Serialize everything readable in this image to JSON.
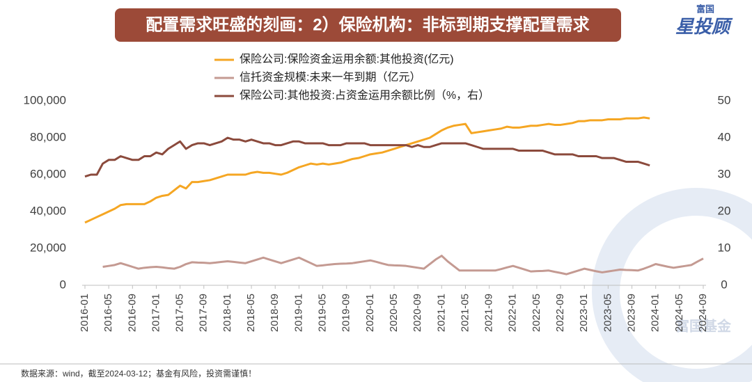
{
  "chart_data": {
    "type": "line",
    "title": "配置需求旺盛的刻画：2）保险机构：非标到期支撑配置需求",
    "logo": {
      "top": "富国",
      "main": "星投顾"
    },
    "watermark": "富国基金",
    "footer": "数据来源：wind，截至2024-03-12；基金有风险，投资需谨慎！",
    "categories": [
      "2016-01",
      null,
      null,
      null,
      "2016-05",
      null,
      null,
      null,
      "2016-09",
      null,
      null,
      null,
      "2017-01",
      null,
      null,
      null,
      "2017-05",
      null,
      null,
      null,
      "2017-09",
      null,
      null,
      null,
      "2018-01",
      null,
      null,
      null,
      "2018-05",
      null,
      null,
      null,
      "2018-09",
      null,
      null,
      null,
      "2019-01",
      null,
      null,
      null,
      "2019-05",
      null,
      null,
      null,
      "2019-09",
      null,
      null,
      null,
      "2020-01",
      null,
      null,
      null,
      "2020-05",
      null,
      null,
      null,
      "2020-09",
      null,
      null,
      null,
      "2021-01",
      null,
      null,
      null,
      "2021-05",
      null,
      null,
      null,
      "2021-09",
      null,
      null,
      null,
      "2022-01",
      null,
      null,
      null,
      "2022-05",
      null,
      null,
      null,
      "2022-09",
      null,
      null,
      null,
      "2023-01",
      null,
      null,
      null,
      "2023-05",
      null,
      null,
      null,
      "2023-09",
      null,
      null,
      null,
      "2024-01",
      null,
      null,
      null,
      "2024-05",
      null,
      null,
      null,
      "2024-09"
    ],
    "series": [
      {
        "name": "保险公司:保险资金运用余额:其他投资(亿元)",
        "color": "#f5a623",
        "values": [
          34000,
          35500,
          37000,
          38500,
          40000,
          41500,
          43500,
          44000,
          44000,
          44000,
          44000,
          45500,
          47500,
          48500,
          49000,
          51500,
          54000,
          52500,
          56000,
          56000,
          56500,
          57000,
          58000,
          59000,
          60000,
          60000,
          60000,
          60000,
          61000,
          61500,
          61000,
          61000,
          60500,
          60000,
          61000,
          62500,
          64000,
          65000,
          66000,
          65500,
          66000,
          65500,
          66000,
          66500,
          67500,
          68500,
          69000,
          70000,
          71000,
          71500,
          72000,
          73000,
          74000,
          75000,
          76000,
          77000,
          78000,
          79000,
          80000,
          82000,
          84000,
          85500,
          86500,
          87000,
          87500,
          82500,
          83000,
          83500,
          84000,
          84500,
          85000,
          86000,
          85500,
          85500,
          86000,
          86500,
          86500,
          87000,
          87500,
          87000,
          87000,
          87500,
          88000,
          89000,
          89000,
          89500,
          89500,
          89500,
          90000,
          90000,
          90000,
          90500,
          90500,
          90500,
          91000,
          90500,
          null,
          null,
          null,
          null,
          null,
          null,
          null,
          null,
          null
        ]
      },
      {
        "name": "信托资金规模:未来一年到期（亿元）",
        "color": "#c49a92",
        "values": [
          null,
          null,
          null,
          10000,
          10500,
          11000,
          12000,
          11000,
          10000,
          9000,
          9500,
          9800,
          10000,
          9700,
          9300,
          9000,
          10000,
          11500,
          12500,
          12300,
          12200,
          12000,
          12300,
          12700,
          13000,
          12700,
          12300,
          12000,
          13000,
          14000,
          15000,
          14000,
          13000,
          12000,
          13000,
          14000,
          15000,
          13500,
          12000,
          10500,
          10800,
          11200,
          11500,
          11700,
          11800,
          12000,
          12500,
          13000,
          13500,
          12700,
          11800,
          11000,
          10800,
          10700,
          10500,
          10000,
          9500,
          9000,
          11500,
          14000,
          16000,
          13000,
          10500,
          8000,
          8000,
          8000,
          8000,
          8000,
          8000,
          8000,
          8800,
          9700,
          10500,
          9500,
          8500,
          7500,
          7700,
          7800,
          8000,
          7300,
          6700,
          6000,
          7000,
          8000,
          9000,
          8300,
          7600,
          7000,
          7500,
          8000,
          8500,
          8300,
          8200,
          8000,
          9000,
          10200,
          11500,
          10800,
          10100,
          9500,
          10000,
          10500,
          11000,
          12800,
          14500
        ]
      },
      {
        "name": "保险公司:其他投资:占资金运用余额比例（%，右）",
        "color": "#8b4a3c",
        "axis": "y2",
        "values": [
          29.5,
          30,
          30,
          33,
          34,
          34,
          35,
          34.5,
          34,
          34,
          35,
          35,
          36,
          35.5,
          37,
          38,
          39,
          37,
          38,
          38.5,
          38.5,
          38,
          38.5,
          39,
          40,
          39.5,
          39.5,
          39,
          39.5,
          39,
          38.5,
          38.5,
          38,
          38,
          38.5,
          39,
          39,
          38.5,
          38.5,
          38.5,
          38.5,
          38,
          38,
          38,
          38.5,
          38.5,
          38.5,
          38.5,
          38,
          38,
          38,
          38,
          38,
          38,
          38,
          37.5,
          38,
          37.5,
          37.5,
          38,
          38.5,
          38.5,
          38.5,
          38.5,
          38.5,
          38,
          37.5,
          37,
          37,
          37,
          37,
          37,
          37,
          36.5,
          36.5,
          36.5,
          36.5,
          36.5,
          36,
          35.5,
          35.5,
          35.5,
          35.5,
          35,
          35,
          35,
          35,
          34.5,
          34.5,
          34.5,
          34,
          33.5,
          33.5,
          33.5,
          33,
          32.5,
          null,
          null,
          null,
          null,
          null,
          null,
          null,
          null,
          null
        ]
      }
    ],
    "ylim": [
      0,
      100000
    ],
    "yticks": [
      0,
      {
        "value": 20000,
        "label": "20,000"
      },
      {
        "value": 40000,
        "label": "40,000"
      },
      {
        "value": 60000,
        "label": "60,000"
      },
      {
        "value": 80000,
        "label": "80,000"
      },
      {
        "value": 100000,
        "label": "100,000"
      }
    ],
    "y2lim": [
      0,
      50
    ],
    "y2ticks": [
      0,
      10,
      20,
      30,
      40,
      50
    ],
    "grid": false
  }
}
